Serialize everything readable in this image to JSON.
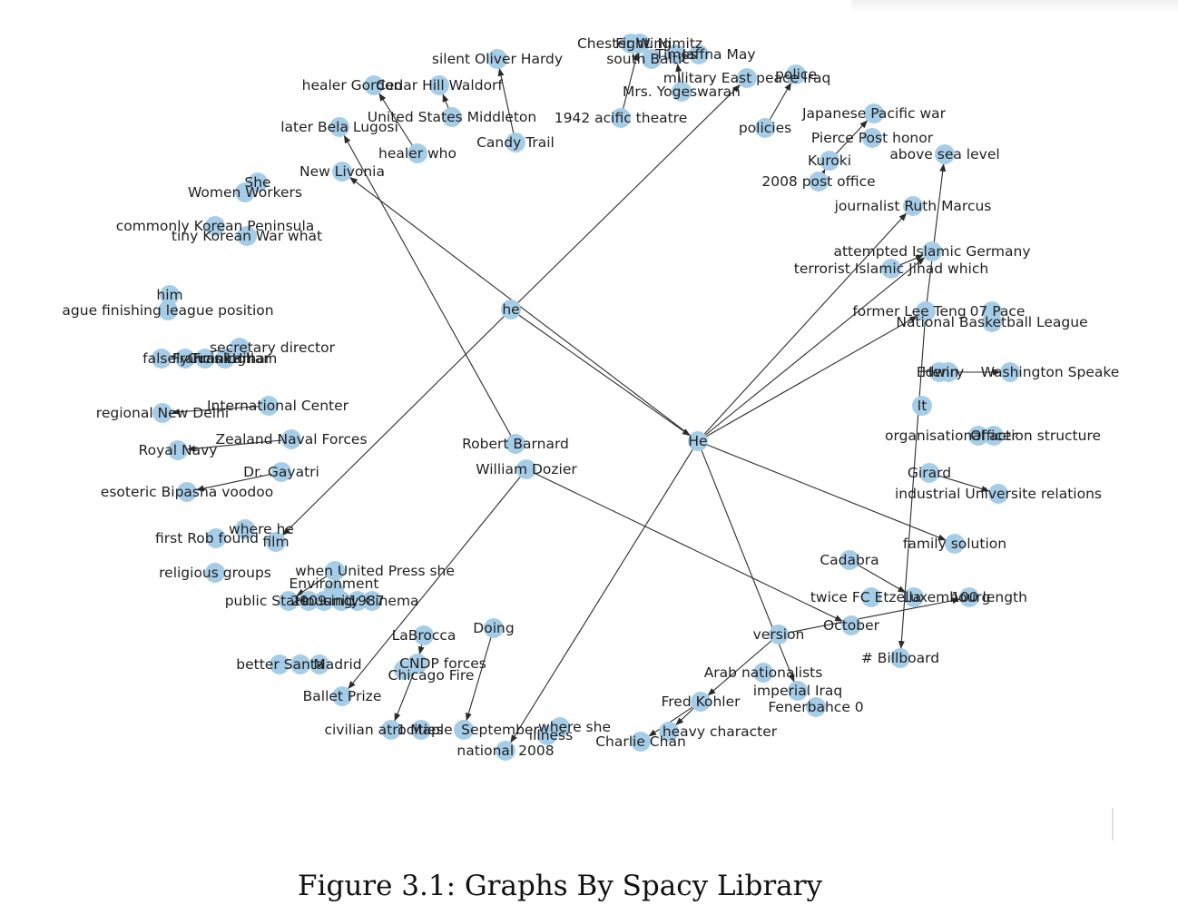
{
  "caption": "Figure 3.1: Graphs By Spacy Library",
  "colors": {
    "node": "#a6cde8",
    "edge": "#2b2b2b",
    "text": "#1f1f1f"
  },
  "nodes": [
    {
      "id": "he_lc",
      "label": "he"
    },
    {
      "id": "He_uc",
      "label": "He"
    },
    {
      "id": "robert",
      "label": "Robert Barnard"
    },
    {
      "id": "dozier",
      "label": "William Dozier"
    },
    {
      "id": "oliver",
      "label": "silent Oliver Hardy"
    },
    {
      "id": "candy",
      "label": "Candy Trail"
    },
    {
      "id": "healerg",
      "label": "healer Gordon"
    },
    {
      "id": "cedar",
      "label": "Cedar Hill Waldorf"
    },
    {
      "id": "usmid",
      "label": "United States Middleton"
    },
    {
      "id": "healerw",
      "label": "healer who"
    },
    {
      "id": "bela",
      "label": "later Bela Lugosi"
    },
    {
      "id": "livonia",
      "label": "New Livonia"
    },
    {
      "id": "she",
      "label": "She"
    },
    {
      "id": "women",
      "label": "Women Workers"
    },
    {
      "id": "korpen",
      "label": "commonly Korean Peninsula"
    },
    {
      "id": "korwar",
      "label": "tiny Korean War what"
    },
    {
      "id": "him",
      "label": "him"
    },
    {
      "id": "ague",
      "label": "ague finishing league position"
    },
    {
      "id": "secdir",
      "label": "secretary  director"
    },
    {
      "id": "falsely",
      "label": "falsely Frank"
    },
    {
      "id": "francis",
      "label": "Francis Lamar"
    },
    {
      "id": "cunning",
      "label": "Cunningham"
    },
    {
      "id": "hill",
      "label": "Hill"
    },
    {
      "id": "regional",
      "label": "regional New Delhi"
    },
    {
      "id": "intl",
      "label": "International Center"
    },
    {
      "id": "zealand",
      "label": "Zealand Naval Forces"
    },
    {
      "id": "royal",
      "label": "Royal Navy"
    },
    {
      "id": "gayatri",
      "label": "Dr. Gayatri"
    },
    {
      "id": "esoteric",
      "label": "esoteric Bipasha voodoo"
    },
    {
      "id": "wherehe",
      "label": "where  he"
    },
    {
      "id": "firstrob",
      "label": "first Rob found"
    },
    {
      "id": "film",
      "label": "film"
    },
    {
      "id": "religious",
      "label": "religious  groups"
    },
    {
      "id": "upress",
      "label": "when United Press she"
    },
    {
      "id": "environ",
      "label": "Environment"
    },
    {
      "id": "pubstate",
      "label": "public State"
    },
    {
      "id": "y2009",
      "label": "2009"
    },
    {
      "id": "housing",
      "label": "Housing"
    },
    {
      "id": "unity",
      "label": "unity"
    },
    {
      "id": "y1987",
      "label": "1987"
    },
    {
      "id": "cinema",
      "label": "Cinema"
    },
    {
      "id": "labrocca",
      "label": "LaBrocca"
    },
    {
      "id": "doing",
      "label": "Doing"
    },
    {
      "id": "better",
      "label": "better"
    },
    {
      "id": "santa",
      "label": "Santa"
    },
    {
      "id": "madrid",
      "label": "Madrid"
    },
    {
      "id": "cndp",
      "label": "CNDP forces"
    },
    {
      "id": "chicago",
      "label": "Chicago Fire"
    },
    {
      "id": "ballet",
      "label": "Ballet  Prize"
    },
    {
      "id": "civilian",
      "label": "civilian  atrocities"
    },
    {
      "id": "maple",
      "label": "1 Maple"
    },
    {
      "id": "september",
      "label": "September"
    },
    {
      "id": "wherell",
      "label": "where  she"
    },
    {
      "id": "illness",
      "label": "illness"
    },
    {
      "id": "nat2008",
      "label": "national  2008"
    },
    {
      "id": "charlie",
      "label": "Charlie Chan"
    },
    {
      "id": "heavy",
      "label": "heavy  character"
    },
    {
      "id": "fredk",
      "label": "Fred Kohler"
    },
    {
      "id": "arabnat",
      "label": "Arab  nationalists"
    },
    {
      "id": "impiraq",
      "label": "imperial  Iraq"
    },
    {
      "id": "fener",
      "label": "Fenerbahce 0"
    },
    {
      "id": "version",
      "label": "version"
    },
    {
      "id": "october",
      "label": "October"
    },
    {
      "id": "billboard",
      "label": "#  Billboard"
    },
    {
      "id": "cadabra",
      "label": "Cadabra"
    },
    {
      "id": "twicefc",
      "label": "twice FC Etzella"
    },
    {
      "id": "luxem",
      "label": "Luxembourg"
    },
    {
      "id": "length",
      "label": "100 length"
    },
    {
      "id": "family",
      "label": "family  solution"
    },
    {
      "id": "girard",
      "label": "Girard"
    },
    {
      "id": "indust",
      "label": "industrial Universite relations"
    },
    {
      "id": "organis",
      "label": "organisational action structure"
    },
    {
      "id": "officer",
      "label": "Officer"
    },
    {
      "id": "It",
      "label": "It"
    },
    {
      "id": "edwin",
      "label": "Edwin"
    },
    {
      "id": "henry",
      "label": "Henry"
    },
    {
      "id": "wash",
      "label": "Washington Speake"
    },
    {
      "id": "leeteng",
      "label": "former Lee Teng"
    },
    {
      "id": "pace",
      "label": "07 Pace"
    },
    {
      "id": "nba",
      "label": "National Basketball League"
    },
    {
      "id": "islamger",
      "label": "attempted Islamic Germany"
    },
    {
      "id": "terror",
      "label": "terrorist Islamic Jihad which"
    },
    {
      "id": "ruth",
      "label": "journalist Ruth Marcus"
    },
    {
      "id": "postoff",
      "label": "2008 post office"
    },
    {
      "id": "kuroki",
      "label": "Kuroki"
    },
    {
      "id": "pierce",
      "label": "Pierce Post honor"
    },
    {
      "id": "sealevel",
      "label": "above sea level"
    },
    {
      "id": "japwar",
      "label": "Japanese Pacific war"
    },
    {
      "id": "policies",
      "label": "policies"
    },
    {
      "id": "police",
      "label": "police"
    },
    {
      "id": "militaryiraq",
      "label": "military East peace Iraq"
    },
    {
      "id": "pacific",
      "label": "1942 acific theatre"
    },
    {
      "id": "yoges",
      "label": "Mrs. Yogeswaran"
    },
    {
      "id": "chester",
      "label": "Chester W. Nimitz"
    },
    {
      "id": "fighting",
      "label": "Fighting"
    },
    {
      "id": "southb",
      "label": "south Baltic"
    },
    {
      "id": "times",
      "label": "Times"
    },
    {
      "id": "jaffna",
      "label": "Jaffna May"
    }
  ],
  "edges": [
    {
      "from": "he_lc",
      "to": "militaryiraq"
    },
    {
      "from": "he_lc",
      "to": "film"
    },
    {
      "from": "he_lc",
      "to": "He_uc"
    },
    {
      "from": "He_uc",
      "to": "livonia"
    },
    {
      "from": "He_uc",
      "to": "ruth"
    },
    {
      "from": "He_uc",
      "to": "islamger"
    },
    {
      "from": "He_uc",
      "to": "leeteng"
    },
    {
      "from": "He_uc",
      "to": "family"
    },
    {
      "from": "He_uc",
      "to": "nat2008"
    },
    {
      "from": "He_uc",
      "to": "impiraq"
    },
    {
      "from": "robert",
      "to": "bela"
    },
    {
      "from": "dozier",
      "to": "october"
    },
    {
      "from": "dozier",
      "to": "ballet"
    },
    {
      "from": "candy",
      "to": "oliver"
    },
    {
      "from": "healerw",
      "to": "healerg"
    },
    {
      "from": "usmid",
      "to": "cedar"
    },
    {
      "from": "pacific",
      "to": "fighting"
    },
    {
      "from": "yoges",
      "to": "times"
    },
    {
      "from": "policies",
      "to": "police"
    },
    {
      "from": "postoff",
      "to": "kuroki"
    },
    {
      "from": "kuroki",
      "to": "japwar"
    },
    {
      "from": "leeteng",
      "to": "sealevel"
    },
    {
      "from": "leeteng",
      "to": "billboard"
    },
    {
      "from": "terror",
      "to": "islamger"
    },
    {
      "from": "henry",
      "to": "wash"
    },
    {
      "from": "organis",
      "to": "officer"
    },
    {
      "from": "girard",
      "to": "indust"
    },
    {
      "from": "cadabra",
      "to": "luxem"
    },
    {
      "from": "version",
      "to": "length"
    },
    {
      "from": "version",
      "to": "fredk"
    },
    {
      "from": "fredk",
      "to": "heavy"
    },
    {
      "from": "fredk",
      "to": "charlie"
    },
    {
      "from": "doing",
      "to": "september"
    },
    {
      "from": "labrocca",
      "to": "cndp"
    },
    {
      "from": "cndp",
      "to": "civilian"
    },
    {
      "from": "intl",
      "to": "regional"
    },
    {
      "from": "zealand",
      "to": "royal"
    },
    {
      "from": "gayatri",
      "to": "esoteric"
    },
    {
      "from": "upress",
      "to": "pubstate"
    },
    {
      "from": "secdir",
      "to": "falsely"
    }
  ]
}
